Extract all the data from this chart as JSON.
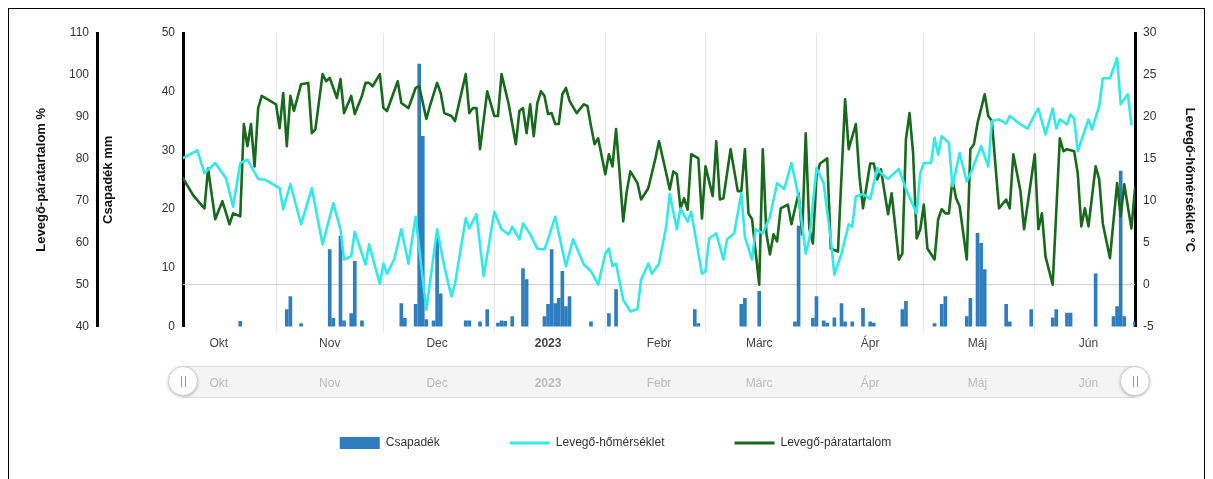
{
  "chart_data": {
    "type": "bar",
    "xlim": [
      "2022-10-06",
      "2023-06-29"
    ],
    "xticks": [
      {
        "value": "2022-10-16",
        "label": "Okt"
      },
      {
        "value": "2022-11-01",
        "label": null
      },
      {
        "value": "2022-11-16",
        "label": "Nov"
      },
      {
        "value": "2022-12-01",
        "label": null
      },
      {
        "value": "2022-12-16",
        "label": "Dec"
      },
      {
        "value": "2023-01-01",
        "label": null
      },
      {
        "value": "2023-01-16",
        "label": "2023"
      },
      {
        "value": "2023-02-01",
        "label": null
      },
      {
        "value": "2023-02-16",
        "label": "Febr"
      },
      {
        "value": "2023-03-01",
        "label": null
      },
      {
        "value": "2023-03-16",
        "label": "Márc"
      },
      {
        "value": "2023-04-01",
        "label": null
      },
      {
        "value": "2023-04-16",
        "label": "Ápr"
      },
      {
        "value": "2023-05-01",
        "label": null
      },
      {
        "value": "2023-05-16",
        "label": "Máj"
      },
      {
        "value": "2023-06-01",
        "label": null
      },
      {
        "value": "2023-06-16",
        "label": "Jún"
      }
    ],
    "ylabel": "Csapadék mm",
    "ylim": [
      0,
      50
    ],
    "yticks": [
      0,
      10,
      20,
      30,
      40,
      50
    ],
    "y2label": "Levegő-hőmérséklet °C",
    "y2lim": [
      -5,
      30
    ],
    "y2ticks": [
      -5,
      0,
      5,
      10,
      15,
      20,
      25,
      30
    ],
    "y3label": "Levegő-páratartalom %",
    "y3lim": [
      40,
      110
    ],
    "y3ticks": [
      40,
      50,
      60,
      70,
      80,
      90,
      100,
      110
    ],
    "grid": "x",
    "legend": "bottom",
    "ref_lines": [
      {
        "axis": "y2",
        "value": 0,
        "color": "#cccccc"
      }
    ],
    "series": [
      {
        "name": "Csapadék",
        "color": "#2e7ebf",
        "x": [
          "2022-10-22",
          "2022-11-04",
          "2022-11-05",
          "2022-11-08",
          "2022-11-16",
          "2022-11-17",
          "2022-11-19",
          "2022-11-20",
          "2022-11-22",
          "2022-11-23",
          "2022-11-25",
          "2022-12-06",
          "2022-12-07",
          "2022-12-10",
          "2022-12-11",
          "2022-12-12",
          "2022-12-13",
          "2022-12-15",
          "2022-12-16",
          "2022-12-17",
          "2022-12-24",
          "2022-12-25",
          "2022-12-28",
          "2022-12-30",
          "2023-01-02",
          "2023-01-03",
          "2023-01-04",
          "2023-01-06",
          "2023-01-09",
          "2023-01-10",
          "2023-01-15",
          "2023-01-16",
          "2023-01-17",
          "2023-01-18",
          "2023-01-19",
          "2023-01-20",
          "2023-01-21",
          "2023-01-22",
          "2023-01-28",
          "2023-02-02",
          "2023-02-04",
          "2023-02-26",
          "2023-02-27",
          "2023-03-11",
          "2023-03-12",
          "2023-03-16",
          "2023-03-26",
          "2023-03-27",
          "2023-03-31",
          "2023-04-01",
          "2023-04-03",
          "2023-04-04",
          "2023-04-06",
          "2023-04-08",
          "2023-04-09",
          "2023-04-11",
          "2023-04-14",
          "2023-04-16",
          "2023-04-17",
          "2023-04-25",
          "2023-04-26",
          "2023-05-04",
          "2023-05-06",
          "2023-05-07",
          "2023-05-13",
          "2023-05-14",
          "2023-05-16",
          "2023-05-17",
          "2023-05-18",
          "2023-05-24",
          "2023-05-25",
          "2023-05-31",
          "2023-06-06",
          "2023-06-07",
          "2023-06-10",
          "2023-06-11",
          "2023-06-18",
          "2023-06-23",
          "2023-06-24",
          "2023-06-25",
          "2023-06-26",
          "2023-06-29"
        ],
        "values": [
          0.9,
          2.9,
          5.1,
          0.5,
          13.1,
          1.4,
          15.4,
          1.0,
          2.2,
          11.1,
          1.0,
          3.9,
          1.4,
          3.8,
          44.7,
          32.4,
          1.2,
          1.0,
          15.4,
          5.6,
          1.0,
          1.0,
          0.8,
          2.9,
          0.6,
          1.0,
          0.9,
          1.7,
          9.9,
          8.0,
          1.7,
          3.8,
          13.1,
          3.9,
          4.8,
          9.4,
          3.4,
          5.1,
          0.8,
          2.2,
          6.3,
          2.9,
          0.5,
          3.8,
          4.8,
          6.0,
          0.8,
          17.1,
          1.4,
          5.1,
          1.0,
          0.6,
          1.5,
          3.9,
          0.8,
          0.8,
          3.1,
          0.8,
          0.6,
          2.9,
          4.3,
          0.5,
          3.8,
          5.1,
          1.7,
          4.8,
          15.9,
          14.2,
          9.7,
          3.8,
          0.8,
          2.9,
          1.5,
          2.9,
          2.3,
          2.3,
          9.0,
          1.7,
          3.4,
          26.5,
          1.7,
          0.8
        ]
      },
      {
        "name": "Levegő-hőmérséklet",
        "type": "line",
        "axis": "y2",
        "color": "#33e8e8",
        "x": [
          "2022-10-06",
          "2022-10-10",
          "2022-10-12",
          "2022-10-15",
          "2022-10-18",
          "2022-10-20",
          "2022-10-22",
          "2022-10-24",
          "2022-10-27",
          "2022-10-29",
          "2022-11-02",
          "2022-11-03",
          "2022-11-05",
          "2022-11-08",
          "2022-11-11",
          "2022-11-14",
          "2022-11-17",
          "2022-11-19",
          "2022-11-20",
          "2022-11-22",
          "2022-11-23",
          "2022-11-26",
          "2022-11-27",
          "2022-11-30",
          "2022-12-01",
          "2022-12-02",
          "2022-12-04",
          "2022-12-06",
          "2022-12-08",
          "2022-12-10",
          "2022-12-12",
          "2022-12-13",
          "2022-12-16",
          "2022-12-18",
          "2022-12-20",
          "2022-12-21",
          "2022-12-24",
          "2022-12-25",
          "2022-12-27",
          "2022-12-29",
          "2023-01-01",
          "2023-01-03",
          "2023-01-05",
          "2023-01-06",
          "2023-01-08",
          "2023-01-09",
          "2023-01-11",
          "2023-01-13",
          "2023-01-15",
          "2023-01-16",
          "2023-01-18",
          "2023-01-21",
          "2023-01-23",
          "2023-01-26",
          "2023-01-28",
          "2023-01-30",
          "2023-02-01",
          "2023-02-02",
          "2023-02-03",
          "2023-02-04",
          "2023-02-06",
          "2023-02-08",
          "2023-02-10",
          "2023-02-11",
          "2023-02-13",
          "2023-02-14",
          "2023-02-15",
          "2023-02-16",
          "2023-02-18",
          "2023-02-19",
          "2023-02-21",
          "2023-02-22",
          "2023-02-24",
          "2023-02-25",
          "2023-02-28",
          "2023-03-01",
          "2023-03-02",
          "2023-03-04",
          "2023-03-06",
          "2023-03-07",
          "2023-03-09",
          "2023-03-11",
          "2023-03-12",
          "2023-03-14",
          "2023-03-15",
          "2023-03-17",
          "2023-03-19",
          "2023-03-21",
          "2023-03-23",
          "2023-03-25",
          "2023-03-27",
          "2023-03-29",
          "2023-03-30",
          "2023-04-01",
          "2023-04-03",
          "2023-04-05",
          "2023-04-06",
          "2023-04-08",
          "2023-04-10",
          "2023-04-11",
          "2023-04-12",
          "2023-04-14",
          "2023-04-16",
          "2023-04-18",
          "2023-04-19",
          "2023-04-21",
          "2023-04-24",
          "2023-04-26",
          "2023-04-29",
          "2023-04-30",
          "2023-05-01",
          "2023-05-03",
          "2023-05-04",
          "2023-05-05",
          "2023-05-06",
          "2023-05-08",
          "2023-05-09",
          "2023-05-11",
          "2023-05-13",
          "2023-05-14",
          "2023-05-17",
          "2023-05-19",
          "2023-05-20",
          "2023-05-22",
          "2023-05-24",
          "2023-05-25",
          "2023-05-28",
          "2023-05-30",
          "2023-06-01",
          "2023-06-02",
          "2023-06-04",
          "2023-06-06",
          "2023-06-07",
          "2023-06-08",
          "2023-06-10",
          "2023-06-11",
          "2023-06-12",
          "2023-06-13",
          "2023-06-16",
          "2023-06-17",
          "2023-06-19",
          "2023-06-20",
          "2023-06-22",
          "2023-06-24",
          "2023-06-25",
          "2023-06-27",
          "2023-06-28"
        ],
        "values": [
          15.1,
          16.0,
          13.3,
          14.5,
          12.7,
          9.3,
          14.5,
          14.9,
          12.6,
          12.5,
          11.5,
          9.0,
          12.0,
          7.2,
          11.5,
          4.8,
          9.7,
          6.6,
          3.0,
          3.4,
          6.3,
          2.4,
          4.8,
          0.1,
          2.5,
          1.3,
          3.0,
          6.6,
          2.5,
          8.1,
          0.6,
          -3.0,
          6.6,
          2.2,
          -1.4,
          0.1,
          7.9,
          6.7,
          8.4,
          1.0,
          8.7,
          6.6,
          6.0,
          6.9,
          5.4,
          7.3,
          6.0,
          4.3,
          4.2,
          5.4,
          8.1,
          2.2,
          5.4,
          2.4,
          1.6,
          0.0,
          3.7,
          4.3,
          2.2,
          2.5,
          -1.8,
          -3.2,
          -2.9,
          0.6,
          2.5,
          1.3,
          1.9,
          2.5,
          6.9,
          10.8,
          6.6,
          9.1,
          7.5,
          8.7,
          1.3,
          1.6,
          5.5,
          6.1,
          3.0,
          5.4,
          6.1,
          10.9,
          5.7,
          3.0,
          6.6,
          6.1,
          8.1,
          12.1,
          11.4,
          14.5,
          10.5,
          3.7,
          5.4,
          13.9,
          12.1,
          5.4,
          1.2,
          3.7,
          7.2,
          6.9,
          10.5,
          10.8,
          10.2,
          13.9,
          13.3,
          12.6,
          13.8,
          11.4,
          8.5,
          13.3,
          14.5,
          14.5,
          17.5,
          15.5,
          17.7,
          16.9,
          11.7,
          15.7,
          12.3,
          13.2,
          16.5,
          14.1,
          19.5,
          19.7,
          19.2,
          20.1,
          19.1,
          18.6,
          20.3,
          21.0,
          17.9,
          21.0,
          18.6,
          19.7,
          19.1,
          20.3,
          19.8,
          15.9,
          19.7,
          18.5,
          21.3,
          24.6,
          24.6,
          27.0,
          21.5,
          22.7,
          19.1
        ]
      },
      {
        "name": "Levegő-páratartalom",
        "type": "line",
        "axis": "y3",
        "color": "#17691c",
        "x": [
          "2022-10-06",
          "2022-10-09",
          "2022-10-12",
          "2022-10-13",
          "2022-10-15",
          "2022-10-17",
          "2022-10-19",
          "2022-10-20",
          "2022-10-22",
          "2022-10-23",
          "2022-10-24",
          "2022-10-25",
          "2022-10-26",
          "2022-10-27",
          "2022-10-28",
          "2022-11-01",
          "2022-11-02",
          "2022-11-03",
          "2022-11-04",
          "2022-11-05",
          "2022-11-06",
          "2022-11-08",
          "2022-11-10",
          "2022-11-11",
          "2022-11-12",
          "2022-11-14",
          "2022-11-15",
          "2022-11-16",
          "2022-11-18",
          "2022-11-19",
          "2022-11-20",
          "2022-11-22",
          "2022-11-23",
          "2022-11-25",
          "2022-11-26",
          "2022-11-27",
          "2022-11-28",
          "2022-11-30",
          "2022-12-01",
          "2022-12-02",
          "2022-12-05",
          "2022-12-06",
          "2022-12-08",
          "2022-12-10",
          "2022-12-11",
          "2022-12-13",
          "2022-12-14",
          "2022-12-16",
          "2022-12-17",
          "2022-12-18",
          "2022-12-20",
          "2022-12-21",
          "2022-12-24",
          "2022-12-25",
          "2022-12-26",
          "2022-12-27",
          "2022-12-28",
          "2022-12-30",
          "2023-01-01",
          "2023-01-02",
          "2023-01-03",
          "2023-01-05",
          "2023-01-07",
          "2023-01-08",
          "2023-01-09",
          "2023-01-10",
          "2023-01-11",
          "2023-01-12",
          "2023-01-13",
          "2023-01-14",
          "2023-01-15",
          "2023-01-16",
          "2023-01-17",
          "2023-01-18",
          "2023-01-19",
          "2023-01-20",
          "2023-01-21",
          "2023-01-22",
          "2023-01-24",
          "2023-01-26",
          "2023-01-27",
          "2023-01-28",
          "2023-01-29",
          "2023-01-30",
          "2023-02-01",
          "2023-02-02",
          "2023-02-03",
          "2023-02-04",
          "2023-02-05",
          "2023-02-06",
          "2023-02-07",
          "2023-02-08",
          "2023-02-10",
          "2023-02-11",
          "2023-02-13",
          "2023-02-15",
          "2023-02-16",
          "2023-02-18",
          "2023-02-19",
          "2023-02-20",
          "2023-02-21",
          "2023-02-22",
          "2023-02-23",
          "2023-02-24",
          "2023-02-25",
          "2023-02-27",
          "2023-02-28",
          "2023-03-01",
          "2023-03-03",
          "2023-03-04",
          "2023-03-05",
          "2023-03-06",
          "2023-03-08",
          "2023-03-10",
          "2023-03-11",
          "2023-03-12",
          "2023-03-13",
          "2023-03-14",
          "2023-03-16",
          "2023-03-17",
          "2023-03-18",
          "2023-03-19",
          "2023-03-20",
          "2023-03-21",
          "2023-03-22",
          "2023-03-24",
          "2023-03-25",
          "2023-03-27",
          "2023-03-28",
          "2023-03-29",
          "2023-03-30",
          "2023-03-31",
          "2023-04-01",
          "2023-04-02",
          "2023-04-04",
          "2023-04-05",
          "2023-04-07",
          "2023-04-09",
          "2023-04-10",
          "2023-04-12",
          "2023-04-13",
          "2023-04-14",
          "2023-04-16",
          "2023-04-17",
          "2023-04-18",
          "2023-04-19",
          "2023-04-21",
          "2023-04-22",
          "2023-04-24",
          "2023-04-25",
          "2023-04-26",
          "2023-04-27",
          "2023-04-28",
          "2023-04-29",
          "2023-04-30",
          "2023-05-01",
          "2023-05-02",
          "2023-05-04",
          "2023-05-05",
          "2023-05-06",
          "2023-05-07",
          "2023-05-08",
          "2023-05-09",
          "2023-05-10",
          "2023-05-11",
          "2023-05-13",
          "2023-05-14",
          "2023-05-15",
          "2023-05-16",
          "2023-05-18",
          "2023-05-19",
          "2023-05-20",
          "2023-05-22",
          "2023-05-24",
          "2023-05-25",
          "2023-05-26",
          "2023-05-28",
          "2023-05-29",
          "2023-06-01",
          "2023-06-02",
          "2023-06-03",
          "2023-06-04",
          "2023-06-06",
          "2023-06-08",
          "2023-06-09",
          "2023-06-10",
          "2023-06-12",
          "2023-06-13",
          "2023-06-14",
          "2023-06-15",
          "2023-06-16",
          "2023-06-18",
          "2023-06-19",
          "2023-06-20",
          "2023-06-22",
          "2023-06-24",
          "2023-06-25",
          "2023-06-26",
          "2023-06-28",
          "2023-06-29"
        ],
        "values": [
          75.4,
          71.1,
          68.2,
          77.7,
          65.6,
          69.9,
          64.4,
          67.0,
          66.3,
          88.3,
          83.0,
          88.3,
          78.2,
          92.1,
          95.0,
          93.0,
          87.3,
          95.7,
          83.0,
          95.0,
          91.4,
          97.8,
          98.1,
          86.1,
          87.1,
          100.2,
          98.5,
          99.3,
          94.5,
          99.0,
          90.9,
          95.0,
          90.7,
          95.0,
          98.1,
          98.1,
          97.3,
          100.2,
          92.1,
          91.4,
          98.5,
          93.3,
          92.1,
          96.9,
          97.3,
          89.5,
          92.6,
          98.1,
          95.7,
          90.9,
          90.2,
          89.0,
          100.2,
          90.9,
          92.1,
          92.1,
          82.3,
          96.1,
          90.2,
          90.2,
          100.2,
          93.0,
          83.5,
          91.4,
          92.1,
          86.1,
          93.0,
          85.4,
          93.3,
          96.1,
          95.0,
          90.7,
          90.9,
          88.3,
          88.3,
          95.4,
          96.9,
          93.8,
          90.9,
          93.0,
          92.6,
          87.8,
          83.5,
          84.9,
          76.3,
          81.1,
          78.2,
          87.1,
          76.6,
          65.1,
          72.3,
          77.0,
          74.2,
          70.3,
          73.0,
          80.1,
          84.2,
          76.6,
          72.7,
          77.0,
          76.3,
          68.2,
          70.6,
          67.9,
          81.1,
          80.1,
          65.8,
          78.2,
          71.1,
          84.2,
          70.3,
          70.6,
          82.3,
          72.3,
          72.3,
          82.3,
          67.0,
          65.6,
          50.0,
          82.3,
          62.2,
          57.2,
          62.0,
          60.3,
          68.2,
          69.1,
          64.4,
          71.8,
          62.0,
          86.1,
          63.4,
          59.8,
          75.8,
          78.9,
          80.1,
          58.6,
          57.9,
          94.2,
          82.3,
          88.3,
          75.8,
          68.2,
          78.9,
          78.9,
          75.1,
          77.5,
          66.8,
          71.8,
          56.0,
          57.4,
          84.7,
          90.9,
          81.3,
          61.0,
          63.2,
          69.1,
          58.6,
          56.0,
          65.6,
          68.0,
          67.0,
          67.0,
          75.1,
          70.6,
          68.7,
          56.0,
          82.3,
          83.5,
          88.5,
          95.4,
          90.2,
          89.0,
          68.2,
          70.3,
          68.2,
          81.1,
          72.3,
          63.2,
          81.1,
          63.2,
          67.0,
          56.7,
          50.0,
          84.9,
          81.8,
          82.3,
          81.8,
          76.6,
          63.9,
          68.2,
          63.9,
          78.2,
          75.1,
          64.6,
          56.3,
          74.2,
          66.3,
          73.9,
          63.4,
          73.0
        ]
      }
    ]
  }
}
